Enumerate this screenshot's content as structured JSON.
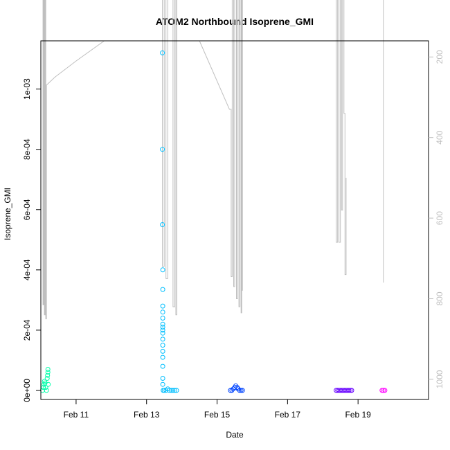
{
  "chart_data": {
    "type": "scatter",
    "title": "ATOM2 Northbound Isoprene_GMI",
    "xlabel": "Date",
    "ylabel": "Isoprene_GMI",
    "x_ticks": [
      "Feb 11",
      "Feb 13",
      "Feb 15",
      "Feb 17",
      "Feb 19"
    ],
    "y_ticks": [
      "0e+00",
      "2e-04",
      "4e-04",
      "6e-04",
      "8e-04",
      "1e-03"
    ],
    "y_right_ticks": [
      "200",
      "400",
      "600",
      "800",
      "1000"
    ],
    "ylim": [
      -3e-05,
      0.00116
    ],
    "y_right_lim": [
      1050,
      160
    ],
    "grid": false,
    "point_colors": [
      "#00ffaa",
      "#00bfff",
      "#0044ff",
      "#6600ff",
      "#ff00ff"
    ],
    "altitude_line_color": "#bfbfbf",
    "series": [
      {
        "points": [
          [
            10.05,
            0
          ],
          [
            10.07,
            1e-05
          ],
          [
            10.09,
            2e-05
          ],
          [
            10.1,
            3e-05
          ],
          [
            10.12,
            2.5e-05
          ],
          [
            10.14,
            1e-05
          ],
          [
            10.16,
            0
          ],
          [
            10.18,
            4e-05
          ],
          [
            10.19,
            5e-05
          ],
          [
            10.2,
            6e-05
          ],
          [
            10.2,
            7e-05
          ],
          [
            10.21,
            2e-05
          ]
        ]
      },
      {
        "points": [
          [
            13.45,
            0.00112
          ],
          [
            13.45,
            0.0008
          ],
          [
            13.45,
            0.00055
          ],
          [
            13.46,
            0.0004
          ],
          [
            13.46,
            0.000335
          ],
          [
            13.46,
            0.00028
          ],
          [
            13.46,
            0.00026
          ],
          [
            13.46,
            0.00024
          ],
          [
            13.46,
            0.00022
          ],
          [
            13.46,
            0.00021
          ],
          [
            13.46,
            0.0002
          ],
          [
            13.46,
            0.00019
          ],
          [
            13.46,
            0.00017
          ],
          [
            13.46,
            0.00015
          ],
          [
            13.46,
            0.00013
          ],
          [
            13.46,
            0.00011
          ],
          [
            13.46,
            8e-05
          ],
          [
            13.46,
            4e-05
          ],
          [
            13.46,
            2e-05
          ],
          [
            13.47,
            0
          ],
          [
            13.5,
            0
          ],
          [
            13.55,
            0
          ],
          [
            13.6,
            5e-06
          ],
          [
            13.65,
            0
          ],
          [
            13.7,
            0
          ],
          [
            13.75,
            0
          ],
          [
            13.8,
            0
          ],
          [
            13.85,
            0
          ]
        ]
      },
      {
        "points": [
          [
            15.38,
            0
          ],
          [
            15.42,
            0
          ],
          [
            15.46,
            5e-06
          ],
          [
            15.5,
            1e-05
          ],
          [
            15.53,
            1.5e-05
          ],
          [
            15.57,
            1e-05
          ],
          [
            15.6,
            5e-06
          ],
          [
            15.64,
            0
          ],
          [
            15.68,
            0
          ],
          [
            15.72,
            0
          ]
        ]
      },
      {
        "points": [
          [
            18.38,
            0
          ],
          [
            18.42,
            0
          ],
          [
            18.46,
            0
          ],
          [
            18.5,
            0
          ],
          [
            18.54,
            0
          ],
          [
            18.58,
            0
          ],
          [
            18.62,
            0
          ],
          [
            18.66,
            0
          ],
          [
            18.7,
            0
          ],
          [
            18.74,
            0
          ],
          [
            18.78,
            0
          ],
          [
            18.82,
            0
          ]
        ]
      },
      {
        "points": [
          [
            19.68,
            0
          ],
          [
            19.72,
            0
          ],
          [
            19.76,
            0
          ]
        ]
      }
    ],
    "altitude_segments": [
      [
        [
          10.06,
          30
        ],
        [
          10.06,
          815
        ],
        [
          10.08,
          815
        ],
        [
          10.08,
          30
        ],
        [
          10.1,
          30
        ],
        [
          10.1,
          840
        ],
        [
          10.12,
          840
        ],
        [
          10.12,
          30
        ],
        [
          10.14,
          30
        ],
        [
          10.14,
          850
        ],
        [
          10.16,
          850
        ],
        [
          10.16,
          270
        ],
        [
          10.4,
          250
        ],
        [
          11.0,
          210
        ],
        [
          11.8,
          160
        ]
      ],
      [
        [
          13.45,
          30
        ],
        [
          13.45,
          720
        ],
        [
          13.5,
          720
        ],
        [
          13.5,
          30
        ],
        [
          13.55,
          30
        ],
        [
          13.55,
          750
        ],
        [
          13.6,
          750
        ],
        [
          13.6,
          30
        ],
        [
          13.75,
          30
        ],
        [
          13.75,
          820
        ],
        [
          13.8,
          820
        ],
        [
          13.8,
          30
        ],
        [
          13.83,
          30
        ],
        [
          13.83,
          840
        ],
        [
          13.86,
          840
        ],
        [
          13.86,
          30
        ]
      ],
      [
        [
          14.5,
          160
        ],
        [
          15.35,
          330
        ],
        [
          15.4,
          330
        ],
        [
          15.4,
          745
        ],
        [
          15.43,
          745
        ],
        [
          15.43,
          30
        ],
        [
          15.47,
          30
        ],
        [
          15.47,
          770
        ],
        [
          15.5,
          770
        ],
        [
          15.5,
          30
        ],
        [
          15.55,
          30
        ],
        [
          15.55,
          800
        ],
        [
          15.58,
          800
        ],
        [
          15.58,
          30
        ],
        [
          15.62,
          30
        ],
        [
          15.62,
          820
        ],
        [
          15.65,
          820
        ],
        [
          15.65,
          30
        ],
        [
          15.68,
          30
        ],
        [
          15.68,
          835
        ],
        [
          15.7,
          835
        ],
        [
          15.7,
          30
        ],
        [
          15.72,
          30
        ],
        [
          15.72,
          780
        ]
      ],
      [
        [
          18.38,
          30
        ],
        [
          18.38,
          660
        ],
        [
          18.42,
          660
        ],
        [
          18.42,
          30
        ],
        [
          18.46,
          30
        ],
        [
          18.46,
          660
        ],
        [
          18.5,
          660
        ],
        [
          18.5,
          30
        ],
        [
          18.53,
          30
        ],
        [
          18.53,
          580
        ],
        [
          18.56,
          580
        ],
        [
          18.56,
          30
        ],
        [
          18.6,
          30
        ],
        [
          18.6,
          340
        ],
        [
          18.63,
          340
        ],
        [
          18.63,
          740
        ],
        [
          18.66,
          740
        ],
        [
          18.66,
          500
        ]
      ],
      [
        [
          19.72,
          30
        ],
        [
          19.72,
          760
        ]
      ]
    ]
  }
}
